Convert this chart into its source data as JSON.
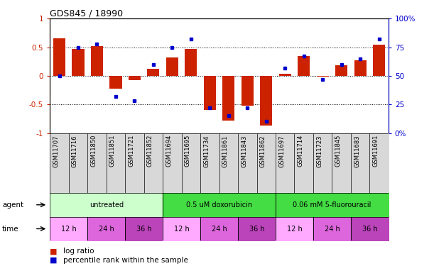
{
  "title": "GDS845 / 18990",
  "samples": [
    "GSM11707",
    "GSM11716",
    "GSM11850",
    "GSM11851",
    "GSM11721",
    "GSM11852",
    "GSM11694",
    "GSM11695",
    "GSM11734",
    "GSM11861",
    "GSM11843",
    "GSM11862",
    "GSM11697",
    "GSM11714",
    "GSM11723",
    "GSM11845",
    "GSM11683",
    "GSM11691"
  ],
  "log_ratio": [
    0.65,
    0.47,
    0.52,
    -0.22,
    -0.07,
    0.12,
    0.32,
    0.47,
    -0.6,
    -0.78,
    -0.52,
    -0.87,
    0.03,
    0.35,
    -0.02,
    0.18,
    0.27,
    0.55
  ],
  "percentile": [
    50,
    75,
    78,
    32,
    28,
    60,
    75,
    82,
    22,
    15,
    22,
    10,
    57,
    67,
    47,
    60,
    65,
    82
  ],
  "bar_color": "#cc2200",
  "dot_color": "#0000cc",
  "agent_groups": [
    {
      "label": "untreated",
      "start": 0,
      "end": 6,
      "color": "#ccffcc"
    },
    {
      "label": "0.5 uM doxorubicin",
      "start": 6,
      "end": 12,
      "color": "#44dd44"
    },
    {
      "label": "0.06 mM 5-fluorouracil",
      "start": 12,
      "end": 18,
      "color": "#44dd44"
    }
  ],
  "time_groups": [
    {
      "label": "12 h",
      "start": 0,
      "end": 2,
      "color": "#ffaaff"
    },
    {
      "label": "24 h",
      "start": 2,
      "end": 4,
      "color": "#dd66dd"
    },
    {
      "label": "36 h",
      "start": 4,
      "end": 6,
      "color": "#bb44bb"
    },
    {
      "label": "12 h",
      "start": 6,
      "end": 8,
      "color": "#ffaaff"
    },
    {
      "label": "24 h",
      "start": 8,
      "end": 10,
      "color": "#dd66dd"
    },
    {
      "label": "36 h",
      "start": 10,
      "end": 12,
      "color": "#bb44bb"
    },
    {
      "label": "12 h",
      "start": 12,
      "end": 14,
      "color": "#ffaaff"
    },
    {
      "label": "24 h",
      "start": 14,
      "end": 16,
      "color": "#dd66dd"
    },
    {
      "label": "36 h",
      "start": 16,
      "end": 18,
      "color": "#bb44bb"
    }
  ],
  "ylim": [
    -1,
    1
  ],
  "y2lim": [
    0,
    100
  ],
  "yticks": [
    -1,
    -0.5,
    0,
    0.5,
    1
  ],
  "y2ticks": [
    0,
    25,
    50,
    75,
    100
  ],
  "ytick_labels": [
    "-1",
    "-0.5",
    "0",
    "0.5",
    "1"
  ],
  "y2tick_labels": [
    "0%",
    "25",
    "50",
    "75",
    "100%"
  ],
  "hlines": [
    -0.5,
    0,
    0.5
  ]
}
